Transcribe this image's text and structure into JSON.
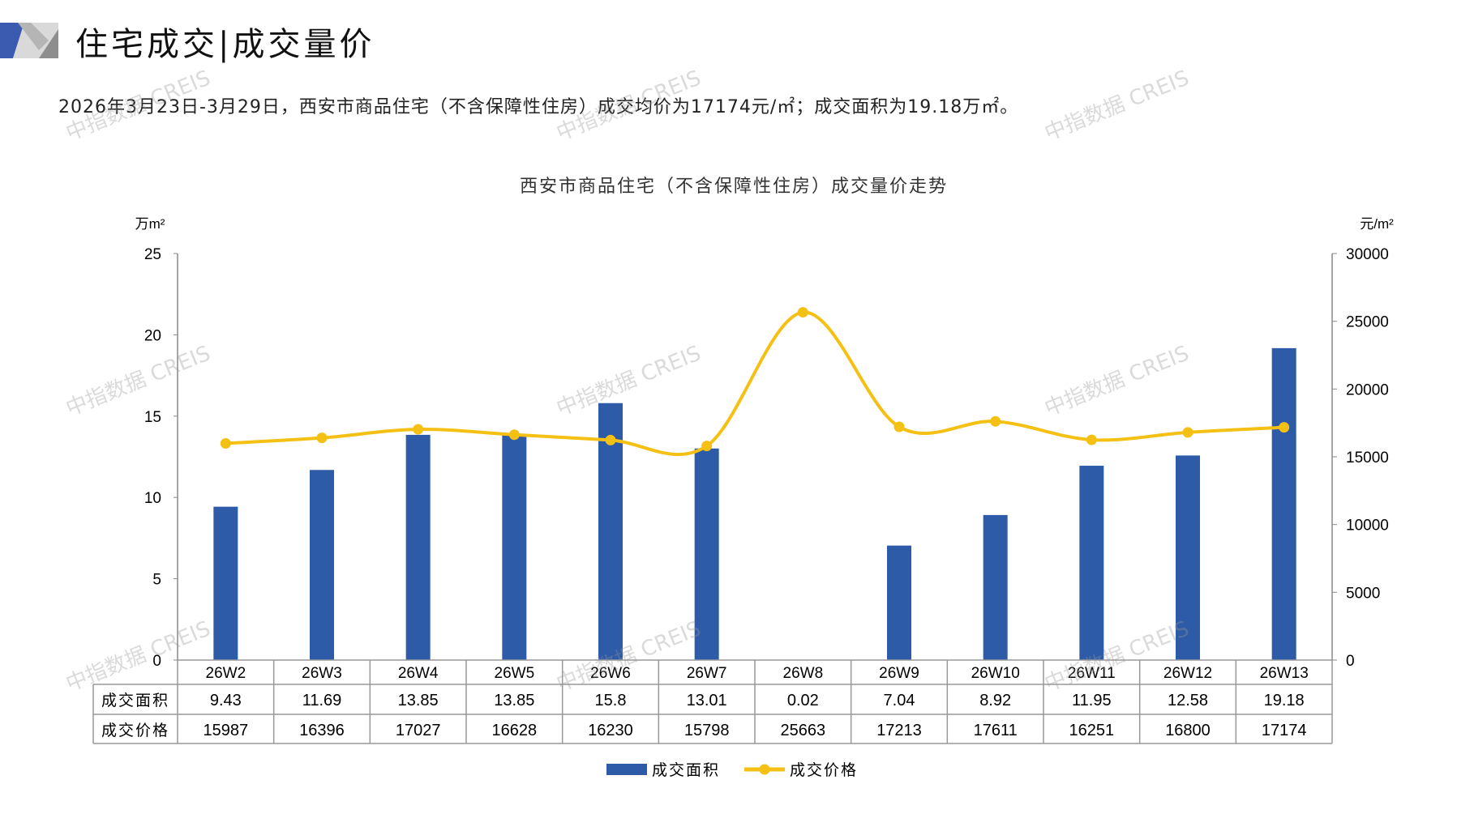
{
  "header": {
    "title": "住宅成交|成交量价",
    "summary": "2026年3月23日-3月29日，西安市商品住宅（不含保障性住房）成交均价为17174元/㎡；成交面积为19.18万㎡。"
  },
  "watermark": "中指数据 CREIS",
  "colors": {
    "bar": "#2E5BA8",
    "line": "#F5C014",
    "accent_blue": "#3A5BB0",
    "accent_gray": "#BDBDBD"
  },
  "chart_data": {
    "type": "bar+line",
    "title": "西安市商品住宅（不含保障性住房）成交量价走势",
    "categories": [
      "26W2",
      "26W3",
      "26W4",
      "26W5",
      "26W6",
      "26W7",
      "26W8",
      "26W9",
      "26W10",
      "26W11",
      "26W12",
      "26W13"
    ],
    "series": [
      {
        "name": "成交面积",
        "type": "bar",
        "axis": "left",
        "values": [
          9.43,
          11.69,
          13.85,
          13.85,
          15.8,
          13.01,
          0.02,
          7.04,
          8.92,
          11.95,
          12.58,
          19.18
        ],
        "labels": [
          "9.43",
          "11.69",
          "13.85",
          "13.85",
          "15.8",
          "13.01",
          "0.02",
          "7.04",
          "8.92",
          "11.95",
          "12.58",
          "19.18"
        ]
      },
      {
        "name": "成交价格",
        "type": "line",
        "axis": "right",
        "values": [
          15987,
          16396,
          17027,
          16628,
          16230,
          15798,
          25663,
          17213,
          17611,
          16251,
          16800,
          17174
        ],
        "labels": [
          "15987",
          "16396",
          "17027",
          "16628",
          "16230",
          "15798",
          "25663",
          "17213",
          "17611",
          "16251",
          "16800",
          "17174"
        ]
      }
    ],
    "y_left": {
      "label": "万m²",
      "ylim": [
        0,
        25
      ],
      "ticks": [
        "0",
        "5",
        "10",
        "15",
        "20",
        "25"
      ]
    },
    "y_right": {
      "label": "元/m²",
      "ylim": [
        0,
        30000
      ],
      "ticks": [
        "0",
        "5000",
        "10000",
        "15000",
        "20000",
        "25000",
        "30000"
      ]
    },
    "data_table": true,
    "legend": "bottom-center",
    "grid": false
  }
}
